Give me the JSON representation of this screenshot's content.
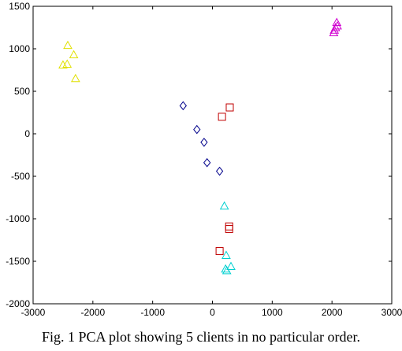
{
  "caption": "Fig. 1 PCA plot showing 5 clients in no particular order.",
  "chart_data": {
    "type": "scatter",
    "xlim": [
      -3000,
      3000
    ],
    "ylim": [
      -2000,
      1500
    ],
    "x_ticks": [
      -3000,
      -2000,
      -1000,
      0,
      1000,
      2000,
      3000
    ],
    "y_ticks": [
      -2000,
      -1500,
      -1000,
      -500,
      0,
      500,
      1000,
      1500
    ],
    "grid": false,
    "series": [
      {
        "marker": "triangle",
        "color": "#e0e000",
        "points": [
          [
            -2420,
            1040
          ],
          [
            -2320,
            930
          ],
          [
            -2500,
            810
          ],
          [
            -2430,
            820
          ],
          [
            -2290,
            650
          ]
        ]
      },
      {
        "marker": "triangle",
        "color": "#d000d0",
        "points": [
          [
            2080,
            1310
          ],
          [
            2090,
            1270
          ],
          [
            2040,
            1220
          ],
          [
            2030,
            1190
          ],
          [
            2060,
            1250
          ]
        ]
      },
      {
        "marker": "diamond",
        "color": "#00008b",
        "points": [
          [
            -490,
            330
          ],
          [
            -260,
            50
          ],
          [
            -140,
            -100
          ],
          [
            -90,
            -340
          ],
          [
            120,
            -440
          ]
        ]
      },
      {
        "marker": "square",
        "color": "#c00000",
        "points": [
          [
            290,
            310
          ],
          [
            160,
            200
          ],
          [
            280,
            -1090
          ],
          [
            280,
            -1120
          ],
          [
            120,
            -1380
          ]
        ]
      },
      {
        "marker": "triangle",
        "color": "#00d0d0",
        "points": [
          [
            200,
            -850
          ],
          [
            230,
            -1430
          ],
          [
            310,
            -1560
          ],
          [
            220,
            -1590
          ],
          [
            240,
            -1610
          ]
        ]
      }
    ]
  }
}
